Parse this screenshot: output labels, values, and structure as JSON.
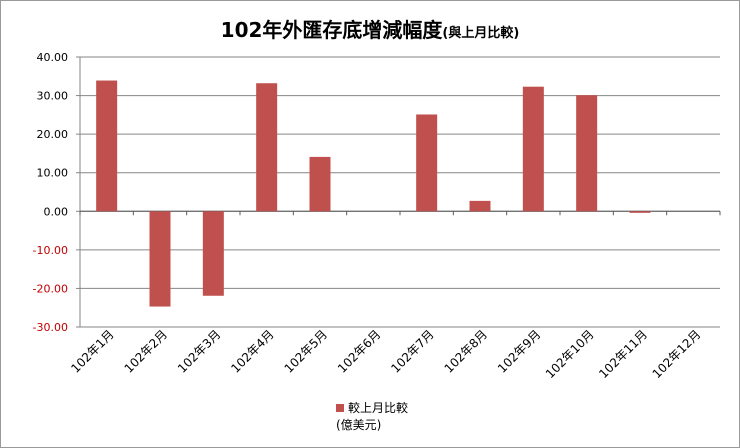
{
  "chart_data": {
    "type": "bar",
    "title": "102年外匯存底增減幅度",
    "subtitle": "(與上月比較)",
    "categories": [
      "102年1月",
      "102年2月",
      "102年3月",
      "102年4月",
      "102年5月",
      "102年6月",
      "102年7月",
      "102年8月",
      "102年9月",
      "102年10月",
      "102年11月",
      "102年12月"
    ],
    "series": [
      {
        "name": "較上月比較",
        "values": [
          33.9,
          -24.7,
          -21.9,
          33.2,
          14.1,
          null,
          25.1,
          2.7,
          32.3,
          30.1,
          -0.4,
          null
        ]
      }
    ],
    "legend_unit": "(億美元)",
    "legend_position": "bottom",
    "ylim": [
      -30,
      40
    ],
    "yticks": [
      "40.00",
      "30.00",
      "20.00",
      "10.00",
      "0.00",
      "-10.00",
      "-20.00",
      "-30.00"
    ],
    "grid": true,
    "colors": {
      "bar": "#c0504d",
      "negative_tick": "#c00000",
      "gridline": "#868686"
    }
  }
}
